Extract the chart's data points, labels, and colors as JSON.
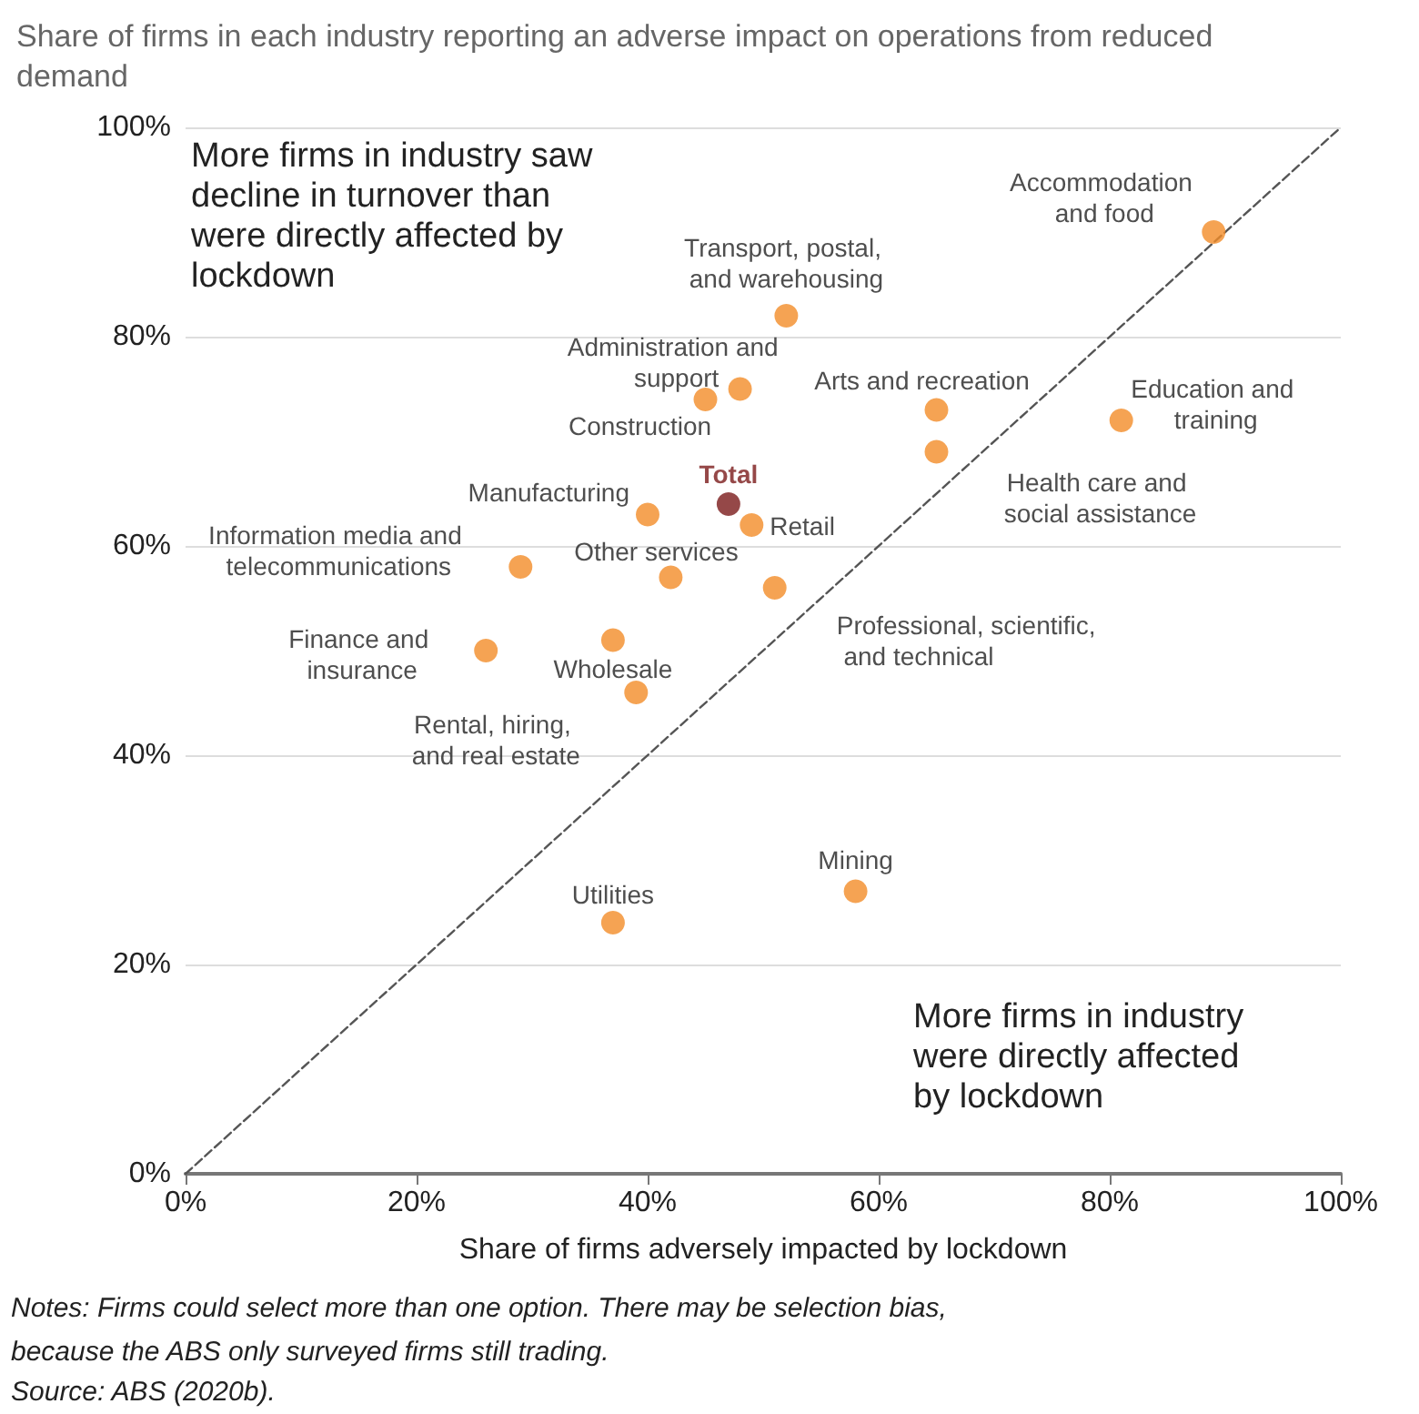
{
  "chart_data": {
    "type": "scatter",
    "title": "Share of firms in each industry reporting an adverse impact on operations from reduced demand",
    "xlabel": "Share of firms adversely impacted by lockdown",
    "xlim": [
      0,
      100
    ],
    "ylim": [
      0,
      100
    ],
    "xticks": [
      {
        "value": 0,
        "label": "0%"
      },
      {
        "value": 20,
        "label": "20%"
      },
      {
        "value": 40,
        "label": "40%"
      },
      {
        "value": 60,
        "label": "60%"
      },
      {
        "value": 80,
        "label": "80%"
      },
      {
        "value": 100,
        "label": "100%"
      }
    ],
    "yticks": [
      {
        "value": 0,
        "label": "0%"
      },
      {
        "value": 20,
        "label": "20%"
      },
      {
        "value": 40,
        "label": "40%"
      },
      {
        "value": 60,
        "label": "60%"
      },
      {
        "value": 80,
        "label": "80%"
      },
      {
        "value": 100,
        "label": "100%"
      }
    ],
    "grid": "y",
    "legend": false,
    "marker": "circle",
    "series": [
      {
        "color": "#f28c28",
        "x": [
          89,
          52,
          48,
          45,
          65,
          81,
          65,
          40,
          49,
          29,
          42,
          51,
          26,
          37,
          39,
          58,
          37
        ],
        "values": [
          90,
          82,
          75,
          74,
          73,
          72,
          69,
          63,
          62,
          58,
          57,
          56,
          50,
          51,
          46,
          27,
          24
        ]
      },
      {
        "name": "Total",
        "color": "#7b1a1a",
        "x": [
          47
        ],
        "values": [
          64
        ]
      },
      {
        "type": "line",
        "color": "#555555",
        "line_style": "dashed",
        "marker": "none",
        "x": [
          0,
          100
        ],
        "values": [
          0,
          100
        ]
      }
    ],
    "annotations": [
      {
        "text": "Accommodation and food",
        "x": 89,
        "y": 90
      },
      {
        "text": "Transport, postal, and warehousing",
        "x": 52,
        "y": 82
      },
      {
        "text": "Administration and support",
        "x": 48,
        "y": 75
      },
      {
        "text": "Construction",
        "x": 45,
        "y": 74
      },
      {
        "text": "Arts and recreation",
        "x": 65,
        "y": 73
      },
      {
        "text": "Education and training",
        "x": 81,
        "y": 72
      },
      {
        "text": "Health care and social assistance",
        "x": 65,
        "y": 69
      },
      {
        "text": "Manufacturing",
        "x": 40,
        "y": 63
      },
      {
        "text": "Retail",
        "x": 49,
        "y": 62
      },
      {
        "text": "Information media and telecommunications",
        "x": 29,
        "y": 58
      },
      {
        "text": "Other services",
        "x": 42,
        "y": 57
      },
      {
        "text": "Professional, scientific, and technical",
        "x": 51,
        "y": 56
      },
      {
        "text": "Finance and insurance",
        "x": 26,
        "y": 50
      },
      {
        "text": "Wholesale",
        "x": 37,
        "y": 51
      },
      {
        "text": "Rental, hiring, and real estate",
        "x": 39,
        "y": 46
      },
      {
        "text": "Mining",
        "x": 58,
        "y": 27
      },
      {
        "text": "Utilities",
        "x": 37,
        "y": 24
      },
      "More firms in industry saw decline in turnover than were directly affected by lockdown",
      "More firms in industry were directly affected by lockdown",
      "Notes: Firms could select more than one option. There may be selection bias, because the ABS only surveyed firms still trading.",
      "Source: ABS (2020b)."
    ]
  }
}
